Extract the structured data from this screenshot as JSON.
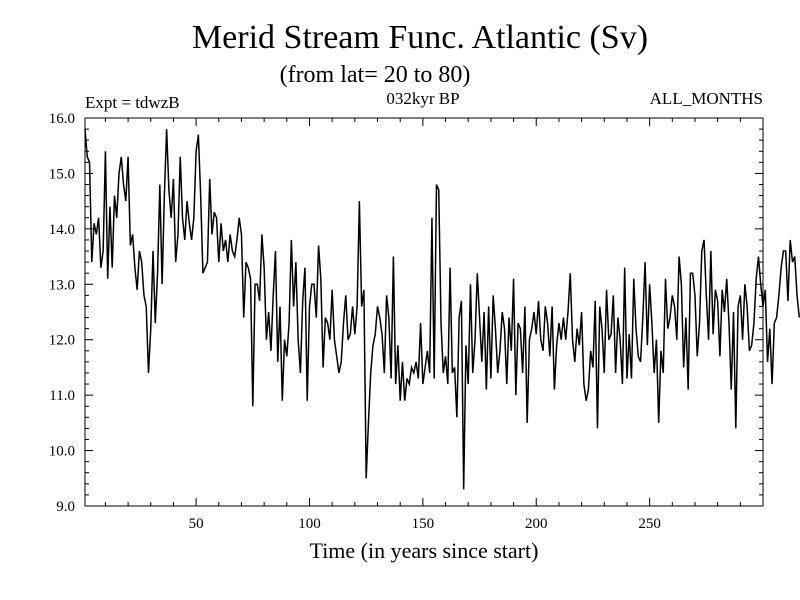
{
  "header": {
    "title": "Merid Stream Func. Atlantic (Sv)",
    "subtitle": "(from lat= 20 to 80)",
    "expt_label": "Expt = tdwzB",
    "period_label": "032kyr BP",
    "months_label": "ALL_MONTHS"
  },
  "chart_data": {
    "type": "line",
    "title": "Merid Stream Func. Atlantic (Sv)",
    "subtitle": "(from lat= 20 to 80)",
    "xlabel": "Time (in years since start)",
    "ylabel": "",
    "xlim": [
      1,
      300
    ],
    "ylim": [
      9.0,
      16.0
    ],
    "x_ticks": [
      50,
      100,
      150,
      200,
      250
    ],
    "x_tick_labels": [
      "50",
      "100",
      "150",
      "200",
      "250"
    ],
    "y_ticks": [
      9.0,
      10.0,
      11.0,
      12.0,
      13.0,
      14.0,
      15.0,
      16.0
    ],
    "y_tick_labels": [
      "9.0",
      "10.0",
      "11.0",
      "12.0",
      "13.0",
      "14.0",
      "15.0",
      "16.0"
    ],
    "grid": false,
    "line_color": "#000000",
    "series": [
      {
        "x_start": 1,
        "x_step": 1,
        "values": [
          15.8,
          15.3,
          15.2,
          13.4,
          14.1,
          13.9,
          14.2,
          13.3,
          13.6,
          15.4,
          13.1,
          14.4,
          13.3,
          14.6,
          14.2,
          15.0,
          15.3,
          14.8,
          14.5,
          15.3,
          13.7,
          13.9,
          13.3,
          12.9,
          13.6,
          13.4,
          12.8,
          12.6,
          11.4,
          12.2,
          13.6,
          12.3,
          13.2,
          14.8,
          13.0,
          14.6,
          15.8,
          14.7,
          14.2,
          14.9,
          13.4,
          13.9,
          15.3,
          14.2,
          13.8,
          14.5,
          14.1,
          13.8,
          14.2,
          15.4,
          15.7,
          14.6,
          13.2,
          13.3,
          13.4,
          14.9,
          13.9,
          14.3,
          14.2,
          13.4,
          14.1,
          13.6,
          13.8,
          13.4,
          13.9,
          13.6,
          13.5,
          13.8,
          14.2,
          13.9,
          12.4,
          13.4,
          13.3,
          13.1,
          10.8,
          13.0,
          13.0,
          12.7,
          13.9,
          13.3,
          12.0,
          12.5,
          11.8,
          12.8,
          13.6,
          11.6,
          12.6,
          10.9,
          12.0,
          11.7,
          12.3,
          13.8,
          12.6,
          13.4,
          12.0,
          11.4,
          12.7,
          13.3,
          10.9,
          12.6,
          13.0,
          13.0,
          12.4,
          13.7,
          13.1,
          11.5,
          12.4,
          12.3,
          12.0,
          12.9,
          12.0,
          11.7,
          11.4,
          11.6,
          12.3,
          12.8,
          12.0,
          12.1,
          12.6,
          12.1,
          12.6,
          14.5,
          12.6,
          12.9,
          9.5,
          10.5,
          11.4,
          11.9,
          12.1,
          12.6,
          12.4,
          12.1,
          11.4,
          12.8,
          12.4,
          11.3,
          13.5,
          11.2,
          11.9,
          10.9,
          11.6,
          10.9,
          11.3,
          11.2,
          11.5,
          11.4,
          11.6,
          11.3,
          12.3,
          11.2,
          11.5,
          11.8,
          11.4,
          14.2,
          11.3,
          14.8,
          14.7,
          12.3,
          11.4,
          11.7,
          11.2,
          13.3,
          11.4,
          11.5,
          10.6,
          12.4,
          12.7,
          9.3,
          11.9,
          11.2,
          13.0,
          11.4,
          12.0,
          13.2,
          12.4,
          11.6,
          12.5,
          11.1,
          12.6,
          11.3,
          12.8,
          12.2,
          11.4,
          11.8,
          12.5,
          12.2,
          11.2,
          12.4,
          11.8,
          13.1,
          11.0,
          12.3,
          12.2,
          11.4,
          12.6,
          10.5,
          12.0,
          12.2,
          12.5,
          12.1,
          12.7,
          12.0,
          11.8,
          12.6,
          12.3,
          11.7,
          12.6,
          11.1,
          11.9,
          12.3,
          12.0,
          12.4,
          12.0,
          12.5,
          13.2,
          12.0,
          11.6,
          12.2,
          11.9,
          12.5,
          11.2,
          10.9,
          11.1,
          11.8,
          11.5,
          12.7,
          10.4,
          12.6,
          12.2,
          11.4,
          12.9,
          12.0,
          12.1,
          12.8,
          11.4,
          12.4,
          12.0,
          11.2,
          13.3,
          11.3,
          12.1,
          11.3,
          13.1,
          12.2,
          11.7,
          11.6,
          12.4,
          13.4,
          11.9,
          13.0,
          12.3,
          11.4,
          12.0,
          10.5,
          11.8,
          11.4,
          13.1,
          12.2,
          12.4,
          12.8,
          12.6,
          12.0,
          13.5,
          13.0,
          11.5,
          12.4,
          11.1,
          13.2,
          13.2,
          12.8,
          11.7,
          12.3,
          13.6,
          13.8,
          12.8,
          12.0,
          13.6,
          12.1,
          12.9,
          12.7,
          11.7,
          12.9,
          12.5,
          13.1,
          12.3,
          11.1,
          12.5,
          10.4,
          12.6,
          12.8,
          12.0,
          13.0,
          12.6,
          11.8,
          11.9,
          12.3,
          13.1,
          13.5,
          13.0,
          12.6,
          12.9,
          11.6,
          12.2,
          11.2,
          12.3,
          12.4,
          12.8,
          13.3,
          13.6,
          13.6,
          12.7,
          13.8,
          13.4,
          13.5,
          12.8,
          12.4
        ]
      }
    ]
  }
}
